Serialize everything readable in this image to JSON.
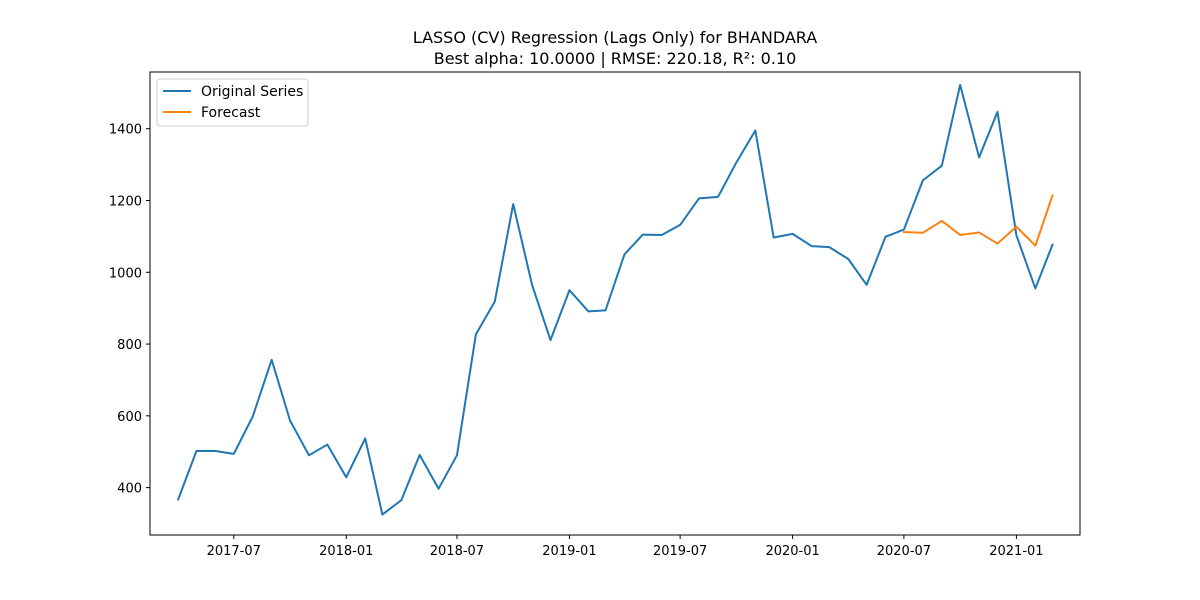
{
  "chart_data": {
    "type": "line",
    "title": "LASSO (CV) Regression (Lags Only) for BHANDARA",
    "subtitle": "Best alpha: 10.0000 | RMSE: 220.18, R²: 0.10",
    "xlabel": "",
    "ylabel": "",
    "x_tick_labels": [
      "2017-07",
      "2018-01",
      "2018-07",
      "2019-01",
      "2019-07",
      "2020-01",
      "2020-07",
      "2021-01"
    ],
    "y_ticks": [
      400,
      600,
      800,
      1000,
      1200,
      1400
    ],
    "xlim": [
      "2017-02-14",
      "2021-04-15"
    ],
    "ylim": [
      268,
      1558
    ],
    "legend_position": "upper-left",
    "grid": false,
    "series": [
      {
        "name": "Original Series",
        "color": "#1f77b4",
        "x": [
          "2017-04-01",
          "2017-05-01",
          "2017-06-01",
          "2017-07-01",
          "2017-08-01",
          "2017-09-01",
          "2017-10-01",
          "2017-11-01",
          "2017-12-01",
          "2018-01-01",
          "2018-02-01",
          "2018-03-01",
          "2018-04-01",
          "2018-05-01",
          "2018-06-01",
          "2018-07-01",
          "2018-08-01",
          "2018-09-01",
          "2018-10-01",
          "2018-11-01",
          "2018-12-01",
          "2019-01-01",
          "2019-02-01",
          "2019-03-01",
          "2019-04-01",
          "2019-05-01",
          "2019-06-01",
          "2019-07-01",
          "2019-08-01",
          "2019-09-01",
          "2019-10-01",
          "2019-11-01",
          "2019-12-01",
          "2020-01-01",
          "2020-02-01",
          "2020-03-01",
          "2020-04-01",
          "2020-05-01",
          "2020-06-01",
          "2020-07-01",
          "2020-08-01",
          "2020-09-01",
          "2020-10-01",
          "2020-11-01",
          "2020-12-01",
          "2021-01-01",
          "2021-02-01",
          "2021-03-01"
        ],
        "values": [
          367,
          502,
          502,
          494,
          598,
          756,
          587,
          490,
          520,
          429,
          537,
          325,
          365,
          491,
          397,
          490,
          827,
          919,
          1190,
          964,
          811,
          950,
          891,
          894,
          1050,
          1105,
          1104,
          1132,
          1206,
          1210,
          1306,
          1395,
          1097,
          1107,
          1073,
          1070,
          1037,
          965,
          1099,
          1119,
          1256,
          1297,
          1522,
          1320,
          1447,
          1103,
          955,
          1077
        ]
      },
      {
        "name": "Forecast",
        "color": "#ff7f0e",
        "x": [
          "2020-07-01",
          "2020-08-01",
          "2020-09-01",
          "2020-10-01",
          "2020-11-01",
          "2020-12-01",
          "2021-01-01",
          "2021-02-01",
          "2021-03-01"
        ],
        "values": [
          1112,
          1110,
          1143,
          1104,
          1111,
          1080,
          1127,
          1074,
          1214
        ]
      }
    ]
  }
}
